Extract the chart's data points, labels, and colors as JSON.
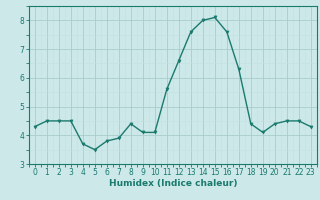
{
  "x": [
    0,
    1,
    2,
    3,
    4,
    5,
    6,
    7,
    8,
    9,
    10,
    11,
    12,
    13,
    14,
    15,
    16,
    17,
    18,
    19,
    20,
    21,
    22,
    23
  ],
  "y": [
    4.3,
    4.5,
    4.5,
    4.5,
    3.7,
    3.5,
    3.8,
    3.9,
    4.4,
    4.1,
    4.1,
    5.6,
    6.6,
    7.6,
    8.0,
    8.1,
    7.6,
    6.3,
    4.4,
    4.1,
    4.4,
    4.5,
    4.5,
    4.3
  ],
  "title": "",
  "xlabel": "Humidex (Indice chaleur)",
  "ylabel": "",
  "xlim": [
    -0.5,
    23.5
  ],
  "ylim": [
    3.0,
    8.5
  ],
  "yticks": [
    3,
    4,
    5,
    6,
    7,
    8
  ],
  "xticks": [
    0,
    1,
    2,
    3,
    4,
    5,
    6,
    7,
    8,
    9,
    10,
    11,
    12,
    13,
    14,
    15,
    16,
    17,
    18,
    19,
    20,
    21,
    22,
    23
  ],
  "line_color": "#1a7a6e",
  "marker_color": "#1a7a6e",
  "bg_color": "#cce8e8",
  "grid_major_color": "#aacccc",
  "grid_minor_color": "#c4e0e0",
  "tick_label_fontsize": 5.5,
  "xlabel_fontsize": 6.5,
  "linewidth": 1.0,
  "markersize": 2.2
}
